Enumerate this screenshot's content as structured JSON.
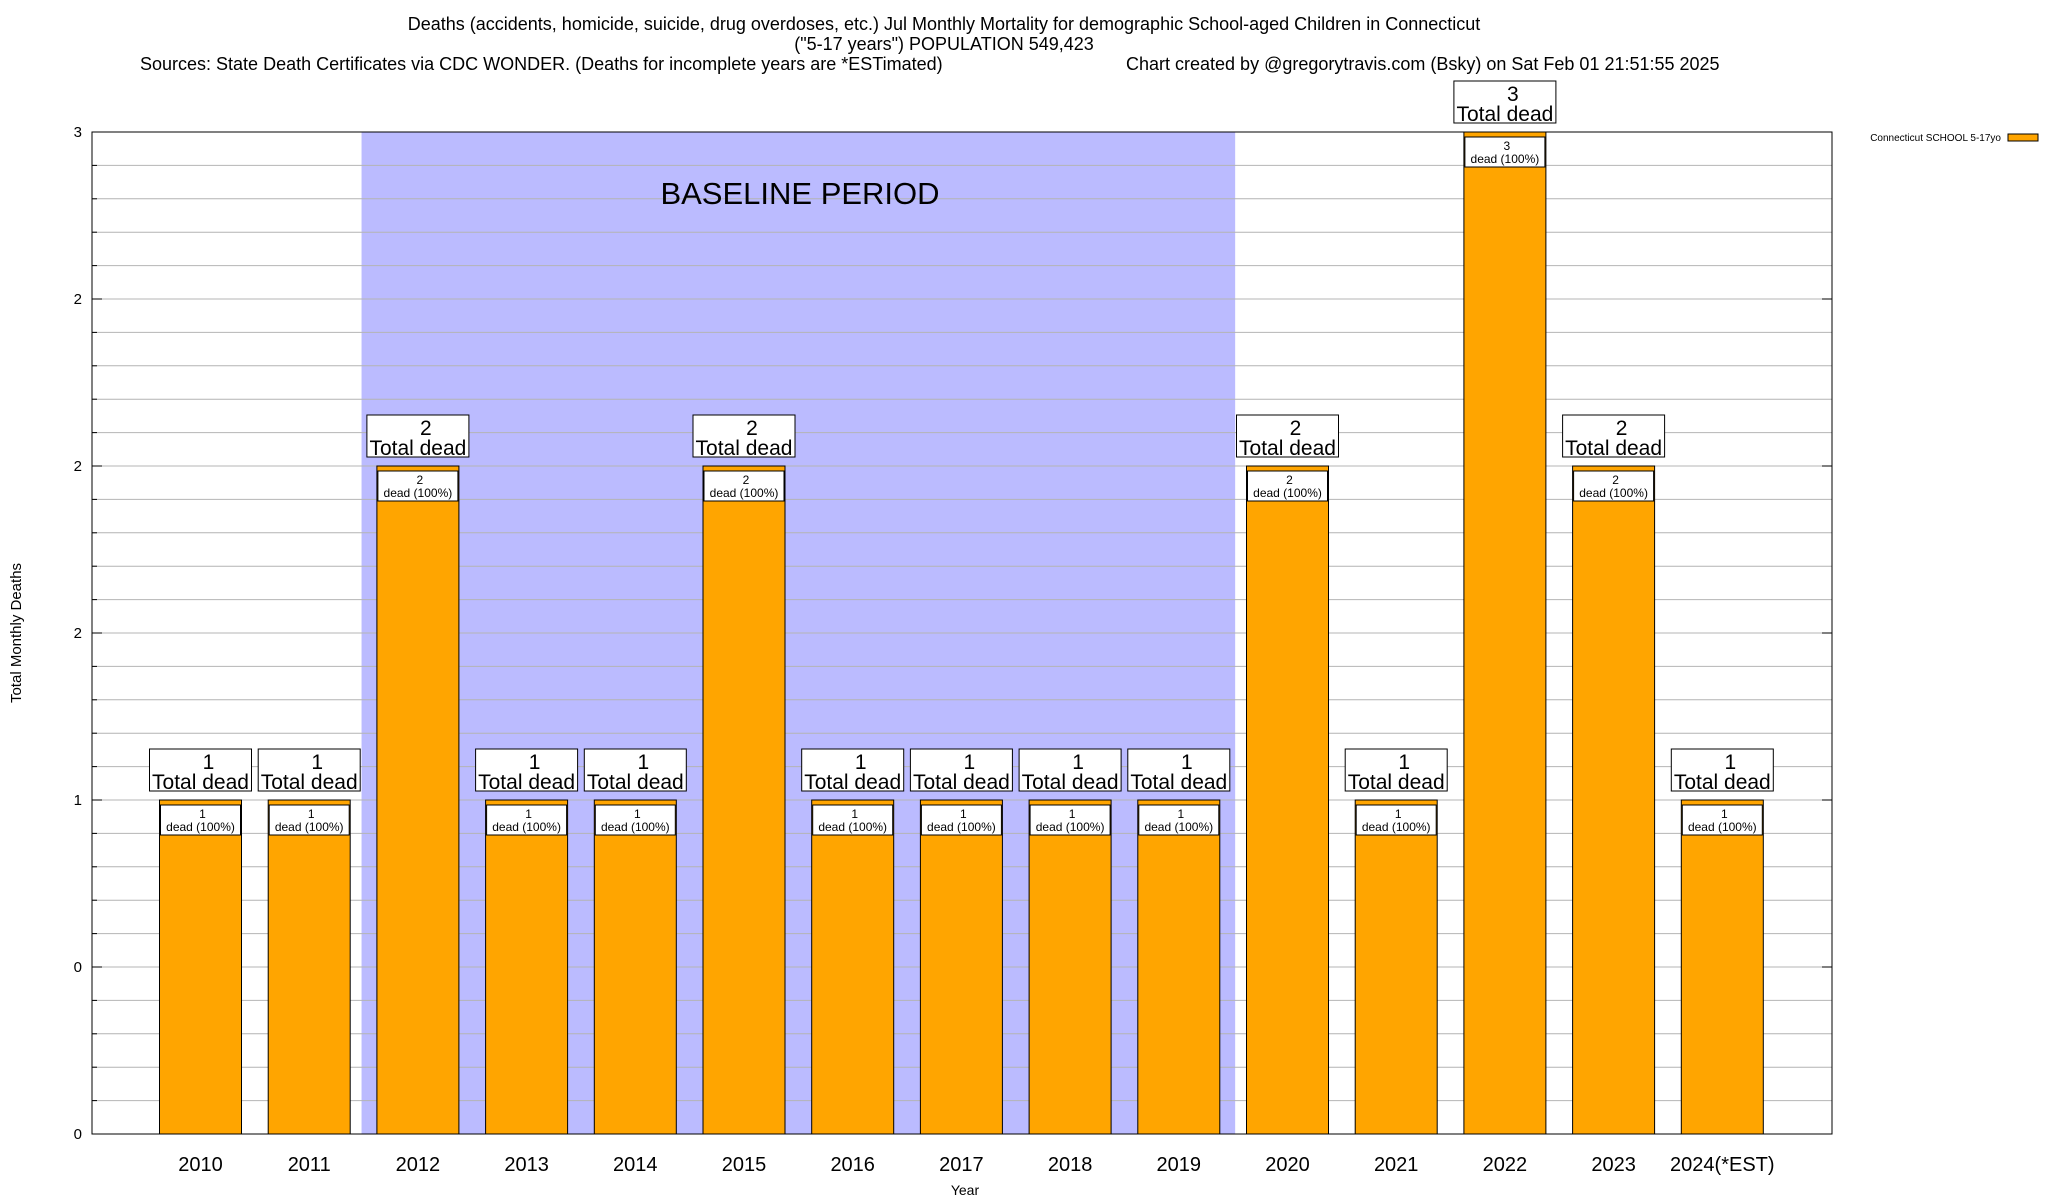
{
  "chart_data": {
    "type": "bar",
    "title_lines": [
      "Deaths (accidents, homicide, suicide, drug overdoses, etc.) Jul Monthly Mortality for demographic School-aged Children in Connecticut",
      "(\"5-17 years\") POPULATION 549,423"
    ],
    "sources": "Sources: State Death Certificates via CDC WONDER. (Deaths for incomplete years are *ESTimated)",
    "credit": "Chart created by @gregorytravis.com (Bsky) on Sat Feb 01 21:51:55 2025",
    "xlabel": "Year",
    "ylabel": "Total Monthly Deaths",
    "categories": [
      "2010",
      "2011",
      "2012",
      "2013",
      "2014",
      "2015",
      "2016",
      "2017",
      "2018",
      "2019",
      "2020",
      "2021",
      "2022",
      "2023",
      "2024(*EST)"
    ],
    "series": [
      {
        "name": "Connecticut SCHOOL 5-17yo",
        "color": "#ffa500",
        "values": [
          1,
          1,
          2,
          1,
          1,
          2,
          1,
          1,
          1,
          1,
          2,
          1,
          3,
          2,
          1
        ]
      }
    ],
    "ylim": [
      0,
      3
    ],
    "y_tick_labels": [
      "0",
      "0",
      "1",
      "2",
      "2",
      "2",
      "3"
    ],
    "baseline_band": {
      "label": "BASELINE PERIOD",
      "from": "2012",
      "to": "2019",
      "color": "#bbbbff"
    },
    "bar_label_suffix": "Total dead",
    "inner_label_suffix": "dead (100%)",
    "grid": true,
    "legend_position": "top-right"
  }
}
